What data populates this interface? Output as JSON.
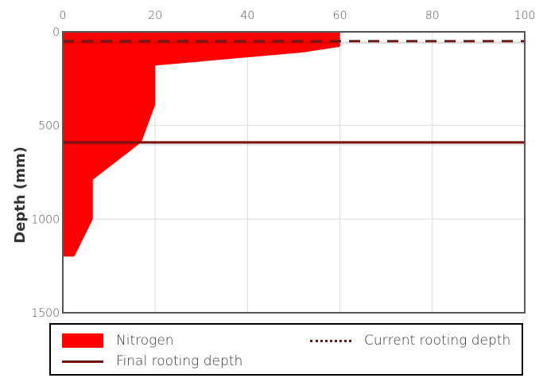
{
  "chart_data": {
    "type": "area",
    "xlabel": "",
    "ylabel": "Depth (mm)",
    "xlim": [
      0,
      100
    ],
    "ylim": [
      0,
      1500
    ],
    "y_inverted": true,
    "x_axis_position": "top",
    "x_ticks": [
      "0",
      "20",
      "40",
      "60",
      "80",
      "100"
    ],
    "y_ticks": [
      "0",
      "500",
      "1000",
      "1500"
    ],
    "x_tick_values": [
      0,
      20,
      40,
      60,
      80,
      100
    ],
    "y_tick_values": [
      0,
      500,
      1000,
      1500
    ],
    "grid": true,
    "legend_position": "bottom",
    "series": [
      {
        "name": "Nitrogen",
        "kind": "area",
        "color": "#ff0000",
        "points": [
          [
            60,
            0
          ],
          [
            60,
            80
          ],
          [
            52,
            110
          ],
          [
            20,
            180
          ],
          [
            20,
            390
          ],
          [
            17,
            590
          ],
          [
            6.5,
            790
          ],
          [
            6.5,
            1000
          ],
          [
            2.5,
            1200
          ],
          [
            0,
            1200
          ]
        ]
      },
      {
        "name": "Current rooting depth",
        "kind": "hline",
        "style": "dashed",
        "color": "#6b1a1a",
        "y": 50
      },
      {
        "name": "Final rooting depth",
        "kind": "hline",
        "style": "solid",
        "color": "#7a1010",
        "y": 590
      }
    ]
  },
  "legend": {
    "nitrogen": "Nitrogen",
    "current": "Current rooting depth",
    "final": "Final rooting depth"
  }
}
